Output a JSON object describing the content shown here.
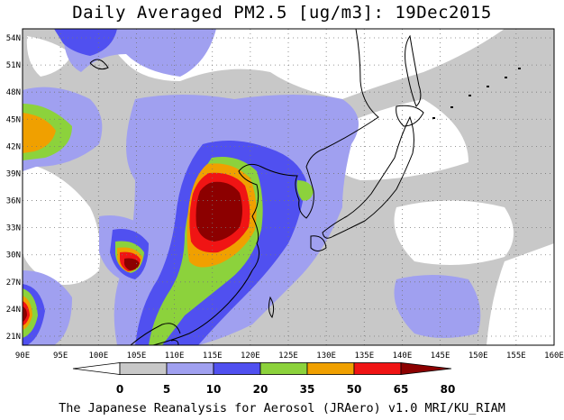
{
  "title": "Daily Averaged PM2.5 [ug/m3]: 19Dec2015",
  "footer": "The Japanese Reanalysis for Aerosol (JRAero) v1.0 MRI/KU_RIAM",
  "map": {
    "lon_range": [
      90,
      160
    ],
    "lat_range": [
      20,
      55
    ],
    "lon_ticks": [
      "90E",
      "95E",
      "100E",
      "105E",
      "110E",
      "115E",
      "120E",
      "125E",
      "130E",
      "135E",
      "140E",
      "145E",
      "150E",
      "155E",
      "160E"
    ],
    "lat_ticks": [
      "21N",
      "24N",
      "27N",
      "30N",
      "33N",
      "36N",
      "39N",
      "42N",
      "45N",
      "48N",
      "51N",
      "54N"
    ]
  },
  "colorbar": {
    "levels": [
      "0",
      "5",
      "10",
      "20",
      "35",
      "50",
      "65",
      "80"
    ],
    "colors": [
      "#ffffff",
      "#c8c8c8",
      "#a0a0f0",
      "#5050f0",
      "#8cd23c",
      "#f0a000",
      "#f01414",
      "#8c0000"
    ]
  }
}
